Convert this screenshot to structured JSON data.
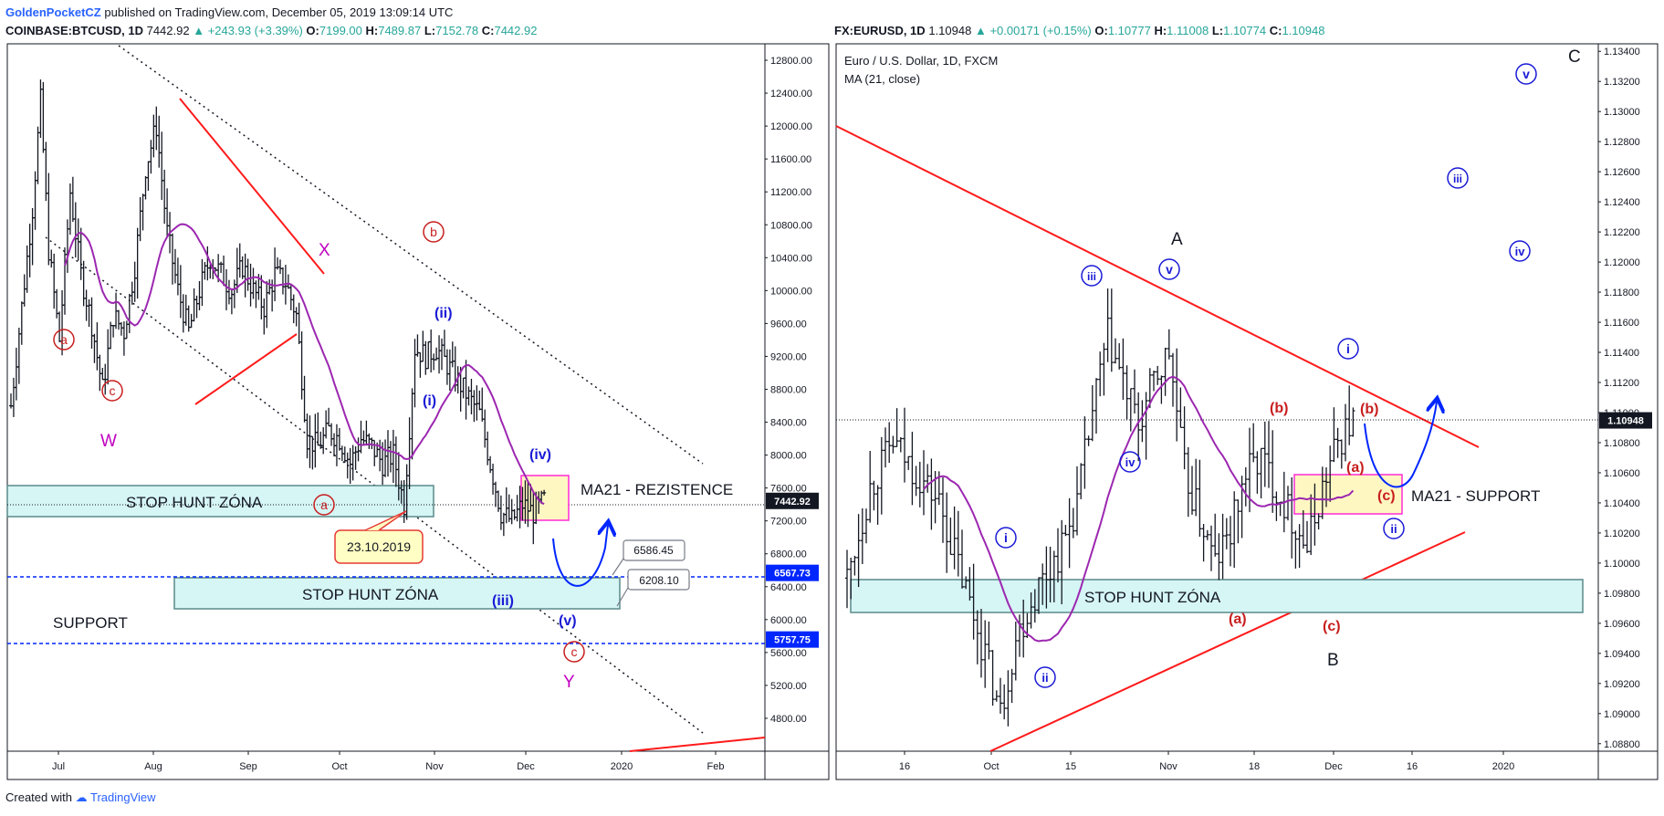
{
  "header": {
    "author": "GoldenPocketCZ",
    "published": "published on TradingView.com, December 05, 2019 13:09:14 UTC"
  },
  "footer": {
    "created": "Created with",
    "brand": "TradingView"
  },
  "left": {
    "symbol": "COINBASE:BTCUSD, 1D",
    "last": "7442.92",
    "change": "+243.93 (+3.39%)",
    "o": "7199.00",
    "h": "7489.87",
    "l": "7152.78",
    "c": "7442.92",
    "labels": {
      "stop_hunt_top": "STOP HUNT ZÓNA",
      "stop_hunt_bottom": "STOP HUNT ZÓNA",
      "support": "SUPPORT",
      "ma21": "MA21 - REZISTENCE",
      "date_callout": "23.10.2019",
      "w": "W",
      "x": "X",
      "y": "Y",
      "a1": "a",
      "c1": "c",
      "a2": "a",
      "b": "b",
      "c2": "c",
      "i": "(i)",
      "ii": "(ii)",
      "iii": "(iii)",
      "iv": "(iv)",
      "v": "(v)",
      "price_6586": "6586.45",
      "price_6208": "6208.10"
    }
  },
  "right": {
    "symbol": "FX:EURUSD, 1D",
    "last": "1.10948",
    "change": "+0.00171 (+0.15%)",
    "o": "1.10777",
    "h": "1.11008",
    "l": "1.10774",
    "c": "1.10948",
    "title": "Euro / U.S. Dollar, 1D, FXCM",
    "ma_legend": "MA (21, close)",
    "labels": {
      "stop_hunt": "STOP HUNT ZÓNA",
      "ma21": "MA21 - SUPPORT",
      "A": "A",
      "B": "B",
      "C": "C",
      "i1": "i",
      "ii1": "ii",
      "iii1": "iii",
      "iv1": "iv",
      "v1": "v",
      "a_red": "(a)",
      "b_red": "(b)",
      "c_red": "(c)",
      "i2": "i",
      "ii2": "ii",
      "b2": "(b)",
      "a2": "(a)",
      "c2": "(c)",
      "iii2": "iii",
      "iv2": "iv",
      "v2": "v"
    }
  },
  "chart_data": [
    {
      "type": "candlestick",
      "title": "COINBASE:BTCUSD, 1D",
      "x_ticks": [
        "Jul",
        "Aug",
        "Sep",
        "Oct",
        "Nov",
        "Dec",
        "2020",
        "Feb"
      ],
      "y_ticks": [
        12800,
        12400,
        12000,
        11600,
        11200,
        10800,
        10400,
        10000,
        9600,
        9200,
        8800,
        8400,
        8000,
        7600,
        7200,
        6800,
        6400,
        6000,
        5600,
        5200,
        4800
      ],
      "ylim": [
        4400,
        13000
      ],
      "price_tags": [
        {
          "label": "7442.92",
          "kind": "last"
        },
        {
          "label": "6567.73",
          "kind": "level"
        },
        {
          "label": "5757.75",
          "kind": "level"
        }
      ],
      "legend": [],
      "grid": false,
      "color_up": "#131722",
      "color_ma": "#9c27b0"
    },
    {
      "type": "candlestick",
      "title": "Euro / U.S. Dollar, 1D, FXCM",
      "series": [
        {
          "name": "MA (21, close)"
        }
      ],
      "x_ticks": [
        "16",
        "Oct",
        "15",
        "Nov",
        "18",
        "Dec",
        "16",
        "2020"
      ],
      "y_ticks": [
        1.134,
        1.132,
        1.13,
        1.128,
        1.126,
        1.124,
        1.122,
        1.12,
        1.118,
        1.116,
        1.114,
        1.112,
        1.11,
        1.108,
        1.106,
        1.104,
        1.102,
        1.1,
        1.098,
        1.096,
        1.094,
        1.092,
        1.09,
        1.088
      ],
      "ylim": [
        1.0875,
        1.1345
      ],
      "price_tags": [
        {
          "label": "1.10948",
          "kind": "last"
        }
      ],
      "grid": false,
      "color_ma": "#9c27b0"
    }
  ]
}
